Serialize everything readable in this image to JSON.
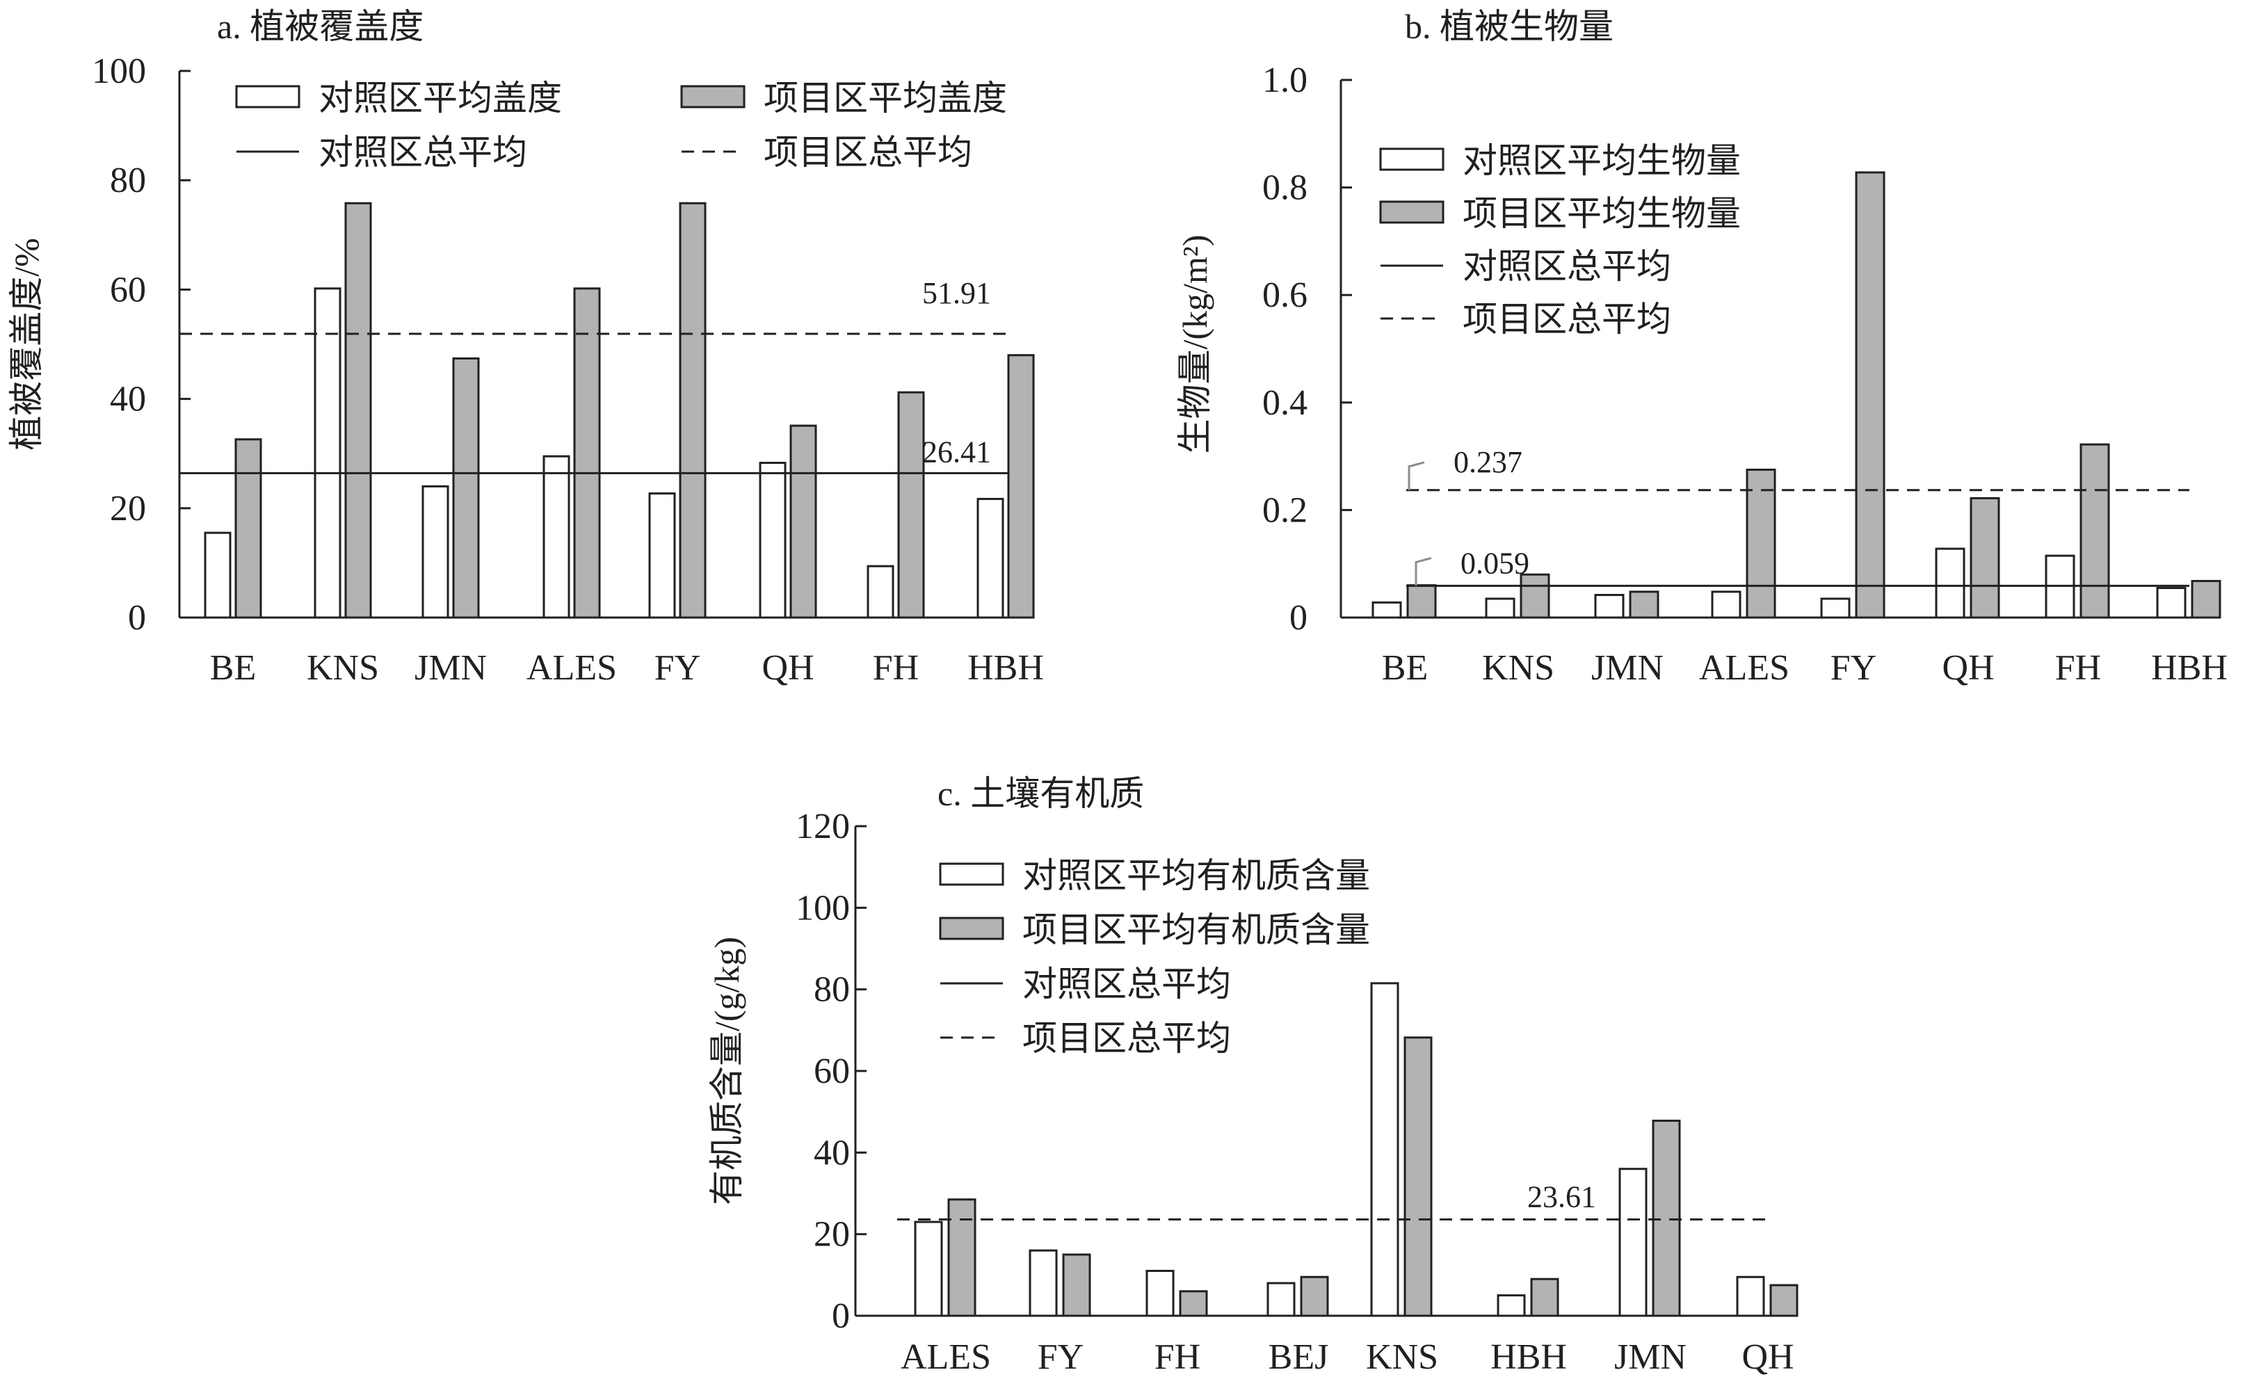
{
  "colors": {
    "control_fill": "#ffffff",
    "project_fill": "#b3b3b3",
    "stroke": "#231f20"
  },
  "chart_data": [
    {
      "type": "bar",
      "title": "a. 植被覆盖度",
      "ylabel": "植被覆盖度/%",
      "ylim": [
        0,
        100
      ],
      "yticks": [
        "0",
        "20",
        "40",
        "60",
        "80",
        "100"
      ],
      "categories": [
        "BE",
        "KNS",
        "JMN",
        "ALES",
        "FY",
        "QH",
        "FH",
        "HBH"
      ],
      "series": [
        {
          "name": "对照区平均盖度",
          "values": [
            15.5,
            60.2,
            24.0,
            29.5,
            22.7,
            28.3,
            9.4,
            21.7
          ]
        },
        {
          "name": "项目区平均盖度",
          "values": [
            32.6,
            75.8,
            47.4,
            60.2,
            75.8,
            35.1,
            41.2,
            48.0
          ]
        }
      ],
      "ref_lines": [
        {
          "name": "对照区总平均",
          "value": 26.41,
          "label": "26.41",
          "style": "solid"
        },
        {
          "name": "项目区总平均",
          "value": 51.91,
          "label": "51.91",
          "style": "dashed"
        }
      ],
      "legend": "top, two columns"
    },
    {
      "type": "bar",
      "title": "b. 植被生物量",
      "ylabel": "生物量/(kg/m²)",
      "ylim": [
        0,
        1.0
      ],
      "yticks": [
        "0",
        "0.2",
        "0.4",
        "0.6",
        "0.8",
        "1.0"
      ],
      "categories": [
        "BE",
        "KNS",
        "JMN",
        "ALES",
        "FY",
        "QH",
        "FH",
        "HBH"
      ],
      "series": [
        {
          "name": "对照区平均生物量",
          "values": [
            0.028,
            0.035,
            0.042,
            0.048,
            0.035,
            0.128,
            0.115,
            0.055
          ]
        },
        {
          "name": "项目区平均生物量",
          "values": [
            0.06,
            0.08,
            0.048,
            0.275,
            0.828,
            0.222,
            0.322,
            0.068
          ]
        }
      ],
      "ref_lines": [
        {
          "name": "对照区总平均",
          "value": 0.059,
          "label": "0.059",
          "style": "solid"
        },
        {
          "name": "项目区总平均",
          "value": 0.237,
          "label": "0.237",
          "style": "dashed"
        }
      ],
      "legend": "top-left, one column"
    },
    {
      "type": "bar",
      "title": "c. 土壤有机质",
      "ylabel": "有机质含量/(g/kg)",
      "ylim": [
        0,
        120
      ],
      "yticks": [
        "0",
        "20",
        "40",
        "60",
        "80",
        "100",
        "120"
      ],
      "categories": [
        "ALES",
        "FY",
        "FH",
        "BEJ",
        "KNS",
        "HBH",
        "JMN",
        "QH"
      ],
      "series": [
        {
          "name": "对照区平均有机质含量",
          "values": [
            23.0,
            16.0,
            11.0,
            8.0,
            81.5,
            5.0,
            36.0,
            9.5
          ]
        },
        {
          "name": "项目区平均有机质含量",
          "values": [
            28.5,
            15.0,
            6.0,
            9.5,
            68.2,
            9.0,
            47.8,
            7.5
          ]
        }
      ],
      "ref_lines": [
        {
          "name": "对照区总平均",
          "value": null,
          "label": "",
          "style": "solid"
        },
        {
          "name": "项目区总平均",
          "value": 23.61,
          "label": "23.61",
          "style": "dashed"
        }
      ],
      "legend": "top-left, one column"
    }
  ]
}
